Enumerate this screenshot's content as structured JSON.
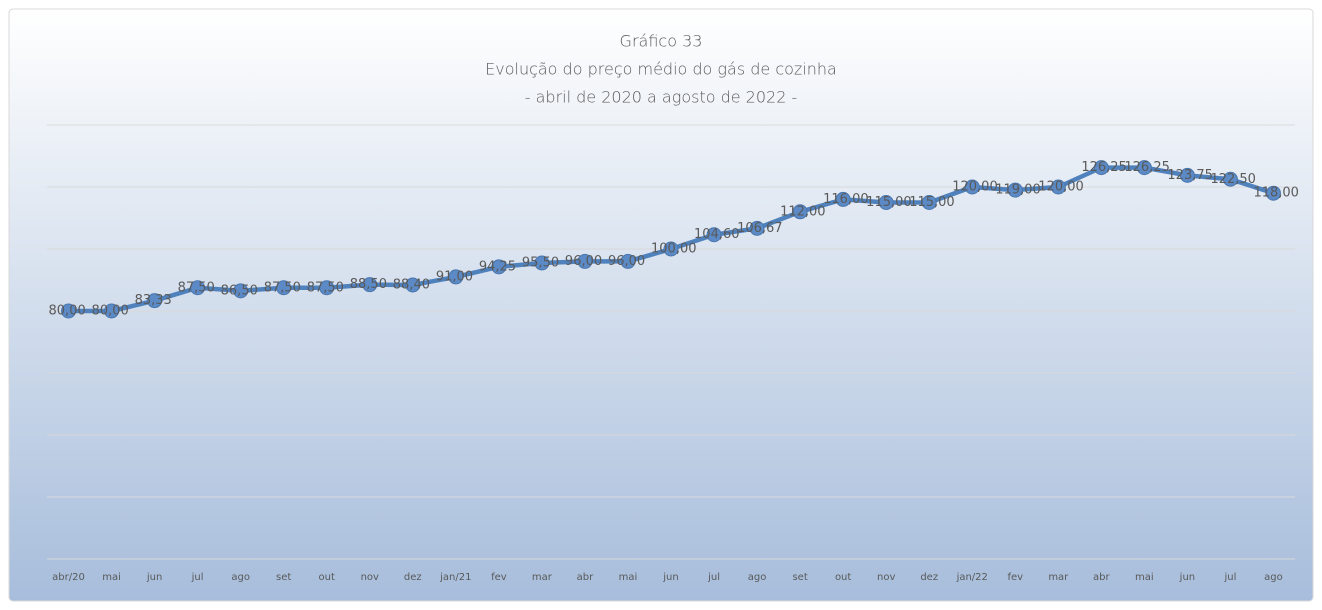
{
  "chart_data": {
    "type": "line",
    "title": [
      "Gráfico 33",
      "Evolução do preço médio do gás de cozinha",
      "- abril de 2020 a agosto de 2022 -"
    ],
    "categories": [
      "abr/20",
      "mai",
      "jun",
      "jul",
      "ago",
      "set",
      "out",
      "nov",
      "dez",
      "jan/21",
      "fev",
      "mar",
      "abr",
      "mai",
      "jun",
      "jul",
      "ago",
      "set",
      "out",
      "nov",
      "dez",
      "jan/22",
      "fev",
      "mar",
      "abr",
      "mai",
      "jun",
      "jul",
      "ago"
    ],
    "values": [
      80,
      80,
      83.33,
      87.5,
      86.5,
      87.5,
      87.5,
      88.5,
      88.4,
      91,
      94.25,
      95.5,
      96,
      96,
      100,
      104.6,
      106.67,
      112,
      116,
      115,
      115,
      120,
      119,
      120,
      126.25,
      126.25,
      123.75,
      122.5,
      118
    ],
    "value_labels": [
      "80,00",
      "80,00",
      "83,33",
      "87,50",
      "86,50",
      "87,50",
      "87,50",
      "88,50",
      "88,40",
      "91,00",
      "94,25",
      "95,50",
      "96,00",
      "96,00",
      "100,00",
      "104,60",
      "106,67",
      "112,00",
      "116,00",
      "115,00",
      "115,00",
      "120,00",
      "119,00",
      "120,00",
      "126,25",
      "126,25",
      "123,75",
      "122,50",
      "118,00"
    ],
    "color": "#4f81bd",
    "ylim": [
      0,
      140
    ],
    "yticks": [
      0,
      20,
      40,
      60,
      80,
      100,
      120,
      140
    ],
    "grid": true
  }
}
